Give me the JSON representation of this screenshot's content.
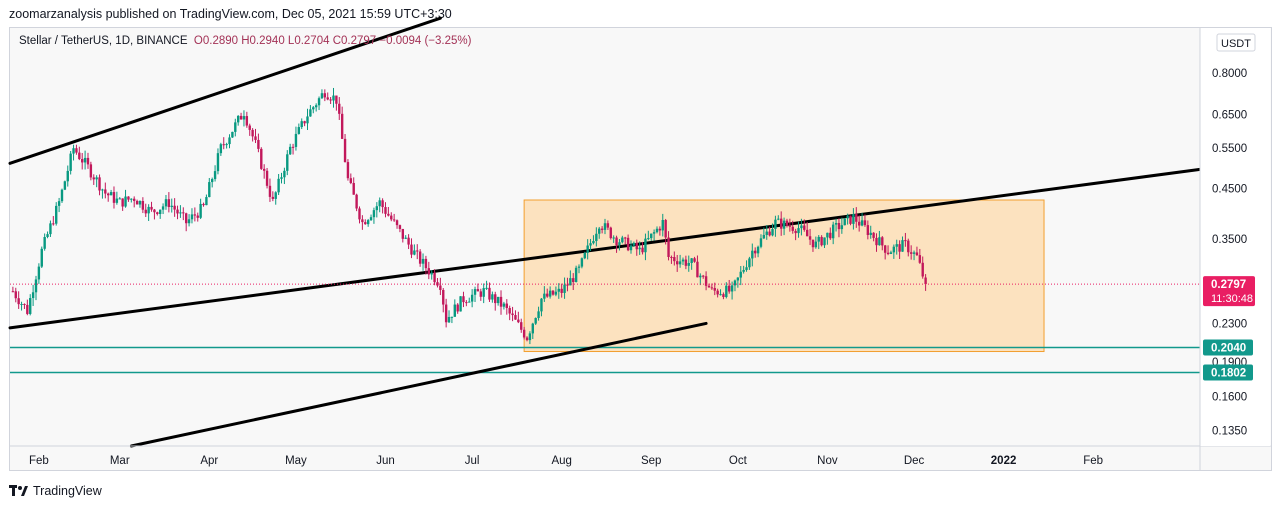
{
  "header": {
    "published_line": "zoomarzanalysis published on TradingView.com, Dec 05, 2021 15:59 UTC+3:30"
  },
  "legend": {
    "symbol": "Stellar / TetherUS, 1D, BINANCE",
    "open": "O0.2890",
    "high": "H0.2940",
    "low": "L0.2704",
    "close": "C0.2797",
    "change": "−0.0094 (−3.25%)"
  },
  "footer": {
    "brand": "TradingView"
  },
  "colors": {
    "up": "#089981",
    "down": "#c2185b",
    "rect_fill": "#fce2bf",
    "rect_stroke": "#f29f2f",
    "channel": "#000000",
    "support": "#12998c",
    "price_label": "#e91e63"
  },
  "chart_data": {
    "type": "candlestick",
    "symbol": "Stellar / TetherUS",
    "interval": "1D",
    "exchange": "BINANCE",
    "currency_label": "USDT",
    "scale": "log",
    "y_axis_ticks": [
      "0.8000",
      "0.6500",
      "0.5500",
      "0.4500",
      "0.3500",
      "0.2800",
      "0.2300",
      "0.1900",
      "0.1600",
      "0.1350"
    ],
    "y_axis_tick_values": [
      0.8,
      0.65,
      0.55,
      0.45,
      0.35,
      0.28,
      0.23,
      0.19,
      0.16,
      0.135
    ],
    "x_axis_labels": [
      "Feb",
      "Mar",
      "Apr",
      "May",
      "Jun",
      "Jul",
      "Aug",
      "Sep",
      "Oct",
      "Nov",
      "Dec",
      "2022",
      "Feb"
    ],
    "x_axis_dates": [
      "2021-02-01",
      "2021-03-01",
      "2021-04-01",
      "2021-05-01",
      "2021-06-01",
      "2021-07-01",
      "2021-08-01",
      "2021-09-01",
      "2021-10-01",
      "2021-11-01",
      "2021-12-01",
      "2022-01-01",
      "2022-02-01"
    ],
    "x_range": [
      "2021-01-22",
      "2022-03-10"
    ],
    "y_range": [
      0.125,
      1.0
    ],
    "last_price": {
      "value": "0.2797",
      "countdown": "11:30:48"
    },
    "horizontal_levels": [
      {
        "value": 0.204,
        "label": "0.2040"
      },
      {
        "value": 0.1802,
        "label": "0.1802"
      }
    ],
    "range_box": {
      "start": "2021-07-19",
      "end": "2022-01-15",
      "top": 0.425,
      "bottom": 0.2
    },
    "channel_lines": [
      {
        "from": [
          "2021-01-22",
          0.51
        ],
        "to": [
          "2021-06-20",
          1.05
        ]
      },
      {
        "from": [
          "2021-01-22",
          0.225
        ],
        "to": [
          "2022-03-10",
          0.495
        ]
      },
      {
        "from": [
          "2021-03-05",
          0.125
        ],
        "to": [
          "2021-09-20",
          0.23
        ]
      }
    ],
    "anchors": [
      [
        "2021-01-23",
        0.27
      ],
      [
        "2021-01-28",
        0.245
      ],
      [
        "2021-02-02",
        0.33
      ],
      [
        "2021-02-08",
        0.42
      ],
      [
        "2021-02-13",
        0.55
      ],
      [
        "2021-02-18",
        0.5
      ],
      [
        "2021-02-24",
        0.44
      ],
      [
        "2021-03-01",
        0.42
      ],
      [
        "2021-03-06",
        0.43
      ],
      [
        "2021-03-12",
        0.4
      ],
      [
        "2021-03-18",
        0.42
      ],
      [
        "2021-03-24",
        0.38
      ],
      [
        "2021-03-30",
        0.41
      ],
      [
        "2021-04-05",
        0.55
      ],
      [
        "2021-04-13",
        0.66
      ],
      [
        "2021-04-17",
        0.56
      ],
      [
        "2021-04-23",
        0.42
      ],
      [
        "2021-04-29",
        0.55
      ],
      [
        "2021-05-05",
        0.65
      ],
      [
        "2021-05-11",
        0.73
      ],
      [
        "2021-05-15",
        0.7
      ],
      [
        "2021-05-19",
        0.47
      ],
      [
        "2021-05-24",
        0.38
      ],
      [
        "2021-05-30",
        0.42
      ],
      [
        "2021-06-05",
        0.37
      ],
      [
        "2021-06-12",
        0.32
      ],
      [
        "2021-06-20",
        0.28
      ],
      [
        "2021-06-22",
        0.235
      ],
      [
        "2021-06-28",
        0.26
      ],
      [
        "2021-07-05",
        0.27
      ],
      [
        "2021-07-12",
        0.25
      ],
      [
        "2021-07-20",
        0.215
      ],
      [
        "2021-07-25",
        0.26
      ],
      [
        "2021-08-01",
        0.27
      ],
      [
        "2021-08-07",
        0.3
      ],
      [
        "2021-08-14",
        0.38
      ],
      [
        "2021-08-20",
        0.35
      ],
      [
        "2021-08-28",
        0.33
      ],
      [
        "2021-09-05",
        0.38
      ],
      [
        "2021-09-07",
        0.32
      ],
      [
        "2021-09-15",
        0.31
      ],
      [
        "2021-09-22",
        0.27
      ],
      [
        "2021-09-29",
        0.27
      ],
      [
        "2021-10-06",
        0.33
      ],
      [
        "2021-10-14",
        0.38
      ],
      [
        "2021-10-22",
        0.37
      ],
      [
        "2021-10-28",
        0.34
      ],
      [
        "2021-11-04",
        0.37
      ],
      [
        "2021-11-10",
        0.39
      ],
      [
        "2021-11-16",
        0.36
      ],
      [
        "2021-11-22",
        0.33
      ],
      [
        "2021-11-28",
        0.34
      ],
      [
        "2021-12-02",
        0.32
      ],
      [
        "2021-12-05",
        0.2797
      ]
    ]
  }
}
